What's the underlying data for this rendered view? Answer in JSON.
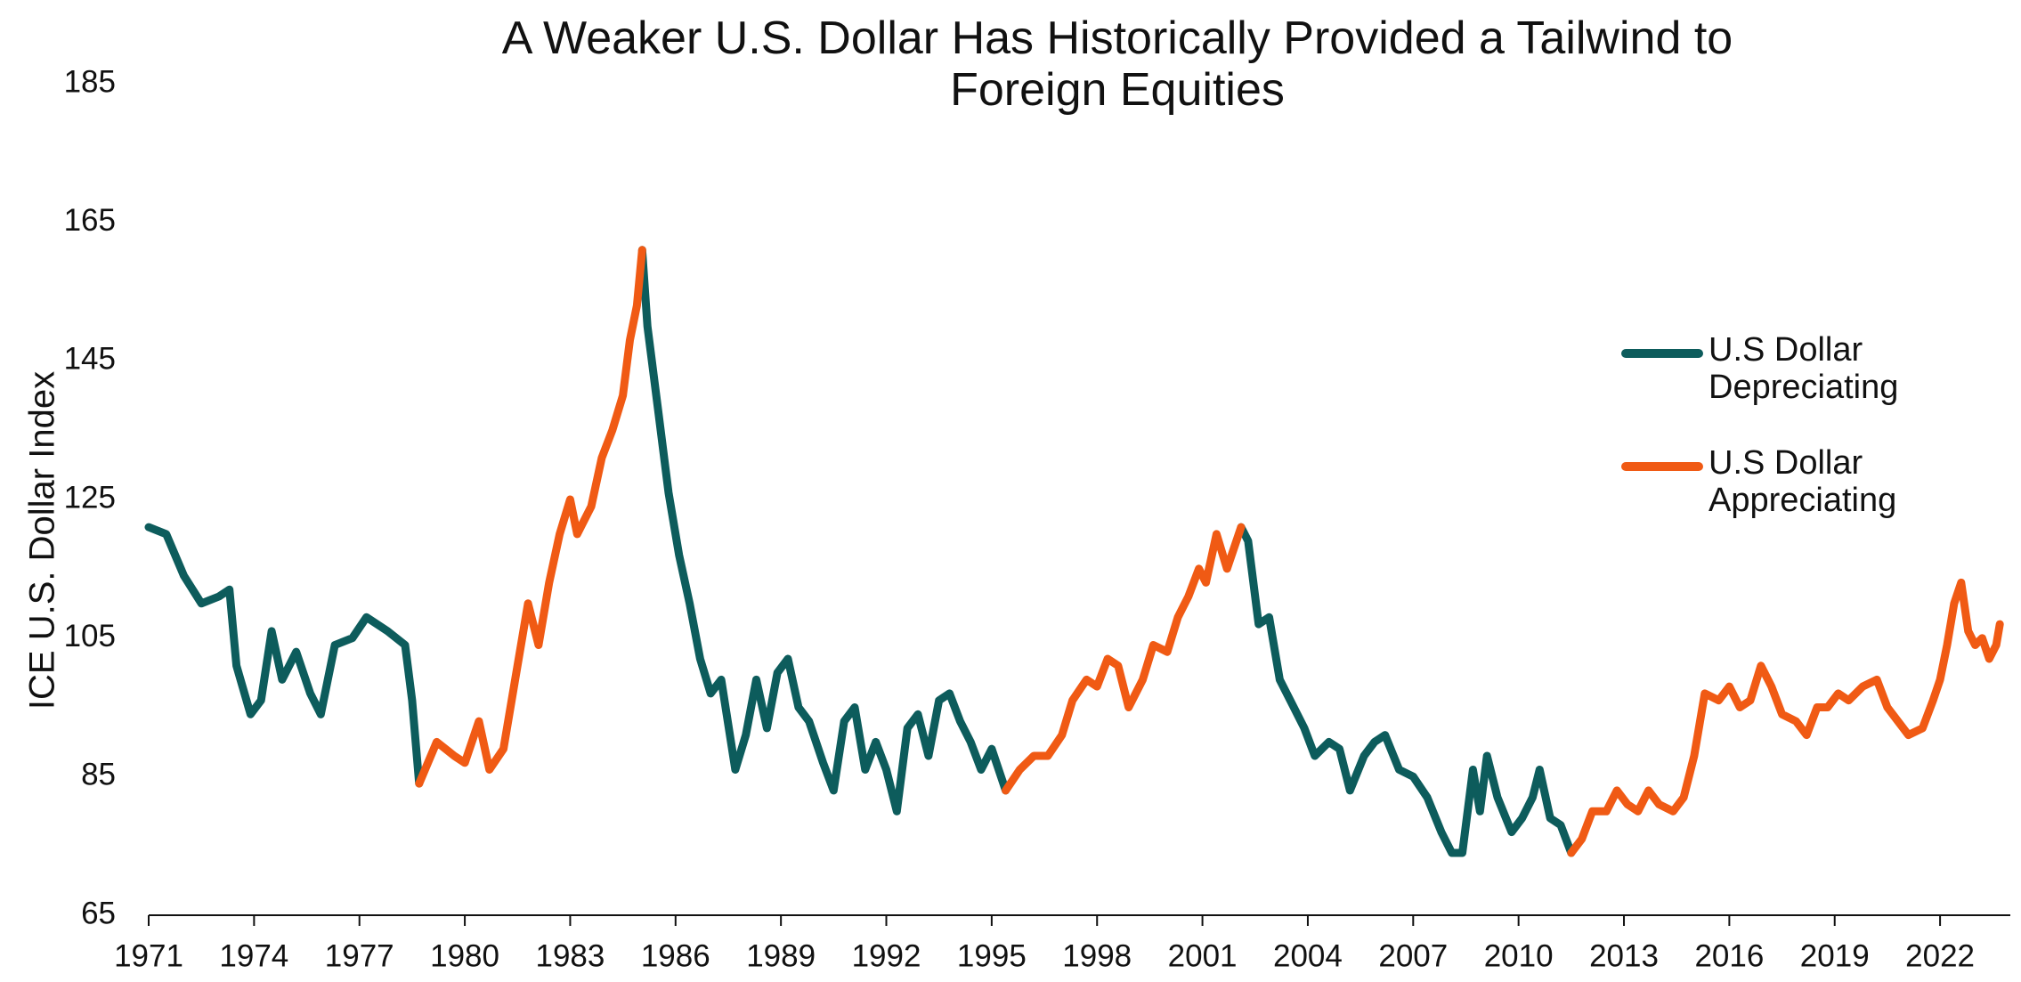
{
  "chart_data": {
    "type": "line",
    "title": [
      "A Weaker U.S. Dollar Has Historically Provided a Tailwind to",
      "Foreign Equities"
    ],
    "y_label": "ICE U.S. Dollar Index",
    "xlim": [
      1971,
      2024
    ],
    "xticks": [
      1971,
      1974,
      1977,
      1980,
      1983,
      1986,
      1989,
      1992,
      1995,
      1998,
      2001,
      2004,
      2007,
      2010,
      2013,
      2016,
      2019,
      2022
    ],
    "ylim": [
      65,
      185
    ],
    "yticks": [
      65,
      85,
      105,
      125,
      145,
      165,
      185
    ],
    "grid": false,
    "legend": "right",
    "x": [
      1971,
      1971.5,
      1972,
      1972.5,
      1973,
      1973.3,
      1973.5,
      1973.9,
      1974.2,
      1974.5,
      1974.8,
      1975.2,
      1975.6,
      1975.9,
      1976.3,
      1976.8,
      1977.2,
      1977.8,
      1978.3,
      1978.5,
      1978.7,
      1979.2,
      1979.7,
      1980.0,
      1980.4,
      1980.7,
      1981.1,
      1981.4,
      1981.8,
      1982.1,
      1982.4,
      1982.7,
      1983.0,
      1983.2,
      1983.6,
      1983.9,
      1984.2,
      1984.5,
      1984.7,
      1984.9,
      1985.05,
      1985.2,
      1985.5,
      1985.8,
      1986.1,
      1986.4,
      1986.7,
      1987.0,
      1987.3,
      1987.7,
      1988.0,
      1988.3,
      1988.6,
      1988.9,
      1989.2,
      1989.5,
      1989.8,
      1990.2,
      1990.5,
      1990.8,
      1991.1,
      1991.4,
      1991.7,
      1992.0,
      1992.3,
      1992.6,
      1992.9,
      1993.2,
      1993.5,
      1993.8,
      1994.1,
      1994.4,
      1994.7,
      1995.0,
      1995.4,
      1995.8,
      1996.2,
      1996.6,
      1997.0,
      1997.3,
      1997.7,
      1998.0,
      1998.3,
      1998.6,
      1998.9,
      1999.3,
      1999.6,
      2000.0,
      2000.3,
      2000.6,
      2000.9,
      2001.1,
      2001.4,
      2001.7,
      2002.1,
      2002.3,
      2002.6,
      2002.9,
      2003.2,
      2003.6,
      2003.9,
      2004.2,
      2004.6,
      2004.9,
      2005.2,
      2005.6,
      2005.9,
      2006.2,
      2006.6,
      2007.0,
      2007.4,
      2007.8,
      2008.1,
      2008.4,
      2008.7,
      2008.9,
      2009.1,
      2009.4,
      2009.8,
      2010.1,
      2010.4,
      2010.6,
      2010.9,
      2011.2,
      2011.5,
      2011.8,
      2012.1,
      2012.5,
      2012.8,
      2013.1,
      2013.4,
      2013.7,
      2014.0,
      2014.4,
      2014.7,
      2015.0,
      2015.3,
      2015.7,
      2016.0,
      2016.3,
      2016.6,
      2016.9,
      2017.2,
      2017.5,
      2017.9,
      2018.2,
      2018.5,
      2018.8,
      2019.1,
      2019.4,
      2019.8,
      2020.2,
      2020.5,
      2020.8,
      2021.1,
      2021.5,
      2021.8,
      2022.0,
      2022.2,
      2022.4,
      2022.6,
      2022.8,
      2023.0,
      2023.2,
      2023.4,
      2023.6,
      2023.7
    ],
    "series": [
      {
        "name": "U.S Dollar Depreciating",
        "color": "#0d5c5c",
        "values": [
          121,
          120,
          114,
          110,
          111,
          112,
          101,
          94,
          96,
          106,
          99,
          103,
          97,
          94,
          104,
          105,
          108,
          106,
          104,
          96,
          84,
          null,
          null,
          null,
          null,
          null,
          null,
          null,
          null,
          null,
          null,
          null,
          null,
          null,
          null,
          null,
          null,
          null,
          null,
          null,
          161,
          150,
          138,
          126,
          117,
          110,
          102,
          97,
          99,
          86,
          91,
          99,
          92,
          100,
          102,
          95,
          93,
          87,
          83,
          93,
          95,
          86,
          90,
          86,
          80,
          92,
          94,
          88,
          96,
          97,
          93,
          90,
          86,
          89,
          83,
          null,
          null,
          null,
          null,
          null,
          null,
          null,
          null,
          null,
          null,
          null,
          null,
          null,
          null,
          null,
          null,
          null,
          null,
          null,
          121,
          119,
          107,
          108,
          99,
          95,
          92,
          88,
          90,
          89,
          83,
          88,
          90,
          91,
          86,
          85,
          82,
          77,
          74,
          74,
          86,
          80,
          88,
          82,
          77,
          79,
          82,
          86,
          79,
          78,
          74,
          null,
          null,
          null,
          null,
          null,
          null,
          null,
          null,
          null,
          null,
          null,
          null,
          null,
          null,
          null,
          null,
          null,
          null,
          null,
          null,
          null,
          null,
          null,
          null,
          null,
          null,
          null,
          null,
          null,
          null,
          null,
          null,
          null,
          null,
          null,
          null,
          null,
          null,
          null,
          null,
          null,
          null
        ]
      },
      {
        "name": "U.S Dollar Appreciating",
        "color": "#f05a14",
        "values": [
          null,
          null,
          null,
          null,
          null,
          null,
          null,
          null,
          null,
          null,
          null,
          null,
          null,
          null,
          null,
          null,
          null,
          null,
          null,
          null,
          84,
          90,
          88,
          87,
          93,
          86,
          89,
          98,
          110,
          104,
          113,
          120,
          125,
          120,
          124,
          131,
          135,
          140,
          148,
          153,
          161,
          null,
          null,
          null,
          null,
          null,
          null,
          null,
          null,
          null,
          null,
          null,
          null,
          null,
          null,
          null,
          null,
          null,
          null,
          null,
          null,
          null,
          null,
          null,
          null,
          null,
          null,
          null,
          null,
          null,
          null,
          null,
          null,
          null,
          83,
          86,
          88,
          88,
          91,
          96,
          99,
          98,
          102,
          101,
          95,
          99,
          104,
          103,
          108,
          111,
          115,
          113,
          120,
          115,
          121,
          null,
          null,
          null,
          null,
          null,
          null,
          null,
          null,
          null,
          null,
          null,
          null,
          null,
          null,
          null,
          null,
          null,
          null,
          null,
          null,
          null,
          null,
          null,
          null,
          null,
          null,
          null,
          null,
          null,
          74,
          76,
          80,
          80,
          83,
          81,
          80,
          83,
          81,
          80,
          82,
          88,
          97,
          96,
          98,
          95,
          96,
          101,
          98,
          94,
          93,
          91,
          95,
          95,
          97,
          96,
          98,
          99,
          95,
          93,
          91,
          92,
          96,
          99,
          104,
          110,
          113,
          106,
          104,
          105,
          102,
          104,
          107
        ]
      }
    ]
  }
}
